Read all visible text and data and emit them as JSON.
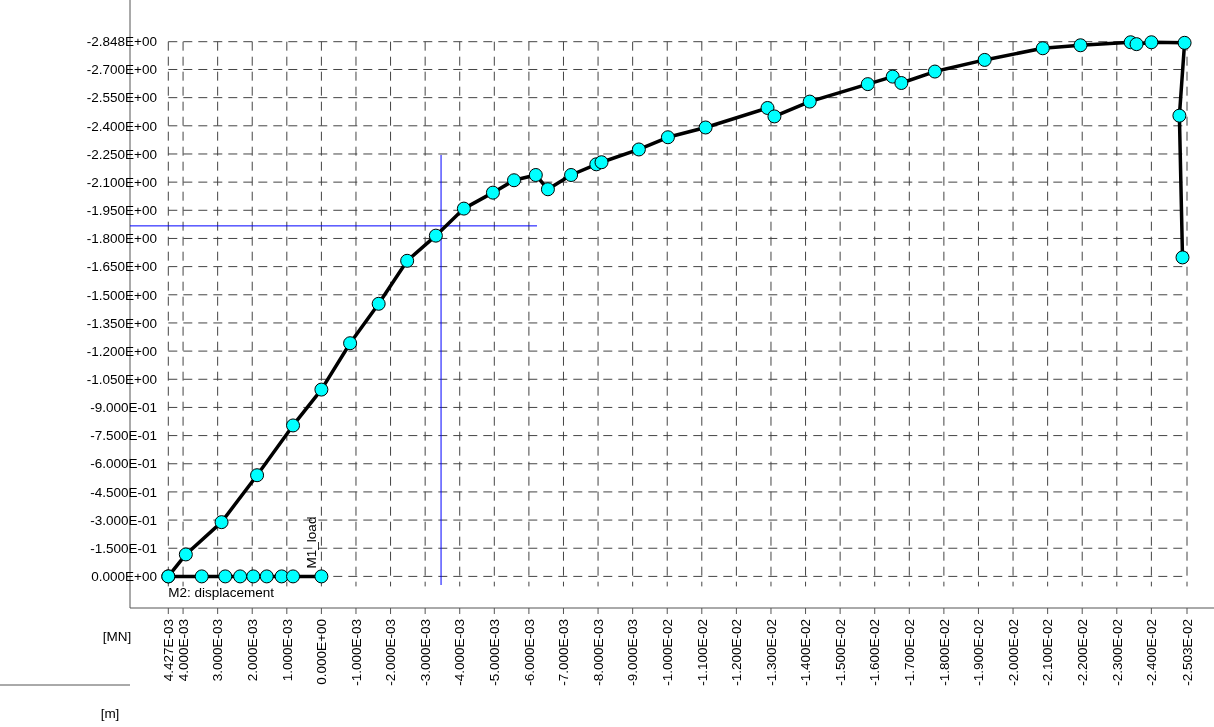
{
  "chart_data": {
    "type": "line",
    "xlabel": "[m]",
    "ylabel": "[MN]",
    "annotations": [
      {
        "text": "M1_load",
        "x": 0,
        "y": 0
      },
      {
        "text": "M2: displacement",
        "x": 0.004427,
        "y": 0
      }
    ],
    "series": [
      {
        "color": "#00ffff",
        "x": [
          0.004427,
          0.00392,
          0.002887,
          0.00186,
          0.00082,
          0,
          -0.00083,
          -0.001656,
          -0.00248,
          -0.00331,
          -0.00412,
          -0.00496,
          -0.00557,
          -0.0062,
          -0.00655,
          -0.00722,
          -0.00795,
          -0.0081,
          -0.00918,
          -0.01002,
          -0.01111,
          -0.0129,
          -0.0131,
          -0.01412,
          -0.0158,
          -0.01652,
          -0.01677,
          -0.01774,
          -0.01918,
          -0.02086,
          -0.02195,
          -0.0234,
          -0.02357,
          -0.024,
          -0.02496,
          -0.02481,
          -0.0249
        ],
        "values": [
          0,
          -0.117,
          -0.289,
          -0.539,
          -0.804,
          -0.995,
          -1.242,
          -1.452,
          -1.681,
          -1.815,
          -1.959,
          -2.044,
          -2.11,
          -2.138,
          -2.062,
          -2.138,
          -2.195,
          -2.206,
          -2.274,
          -2.339,
          -2.391,
          -2.495,
          -2.45,
          -2.529,
          -2.622,
          -2.662,
          -2.628,
          -2.689,
          -2.751,
          -2.813,
          -2.829,
          -2.845,
          -2.835,
          -2.845,
          -2.842,
          -2.454,
          -1.699
        ]
      },
      {
        "color": "#00ffff",
        "x": [
          0.004427,
          0.00346,
          0.00278,
          0.00235,
          0.00197,
          0.00158,
          0.00115,
          0.00082,
          0
        ],
        "values": [
          0,
          0,
          0,
          0,
          0,
          0,
          0,
          0,
          0
        ]
      }
    ],
    "marker": "circle",
    "line_style": "solid",
    "grid": true,
    "ref_lines": [
      {
        "axis": "x",
        "value": -0.00346,
        "color": "#0000ff"
      },
      {
        "axis": "y",
        "value": -1.867,
        "color": "#0000ff"
      }
    ],
    "xlim": [
      0.004427,
      -0.02503
    ],
    "ylim": [
      0,
      -2.848
    ],
    "xticks": [
      {
        "value": 0.004427,
        "label": "4.427E-03"
      },
      {
        "value": 0.004,
        "label": "4.000E-03"
      },
      {
        "value": 0.003,
        "label": "3.000E-03"
      },
      {
        "value": 0.002,
        "label": "2.000E-03"
      },
      {
        "value": 0.001,
        "label": "1.000E-03"
      },
      {
        "value": 0,
        "label": "0.000E+00"
      },
      {
        "value": -0.001,
        "label": "-1.000E-03"
      },
      {
        "value": -0.002,
        "label": "-2.000E-03"
      },
      {
        "value": -0.003,
        "label": "-3.000E-03"
      },
      {
        "value": -0.004,
        "label": "-4.000E-03"
      },
      {
        "value": -0.005,
        "label": "-5.000E-03"
      },
      {
        "value": -0.006,
        "label": "-6.000E-03"
      },
      {
        "value": -0.007,
        "label": "-7.000E-03"
      },
      {
        "value": -0.008,
        "label": "-8.000E-03"
      },
      {
        "value": -0.009,
        "label": "-9.000E-03"
      },
      {
        "value": -0.01,
        "label": "-1.000E-02"
      },
      {
        "value": -0.011,
        "label": "-1.100E-02"
      },
      {
        "value": -0.012,
        "label": "-1.200E-02"
      },
      {
        "value": -0.013,
        "label": "-1.300E-02"
      },
      {
        "value": -0.014,
        "label": "-1.400E-02"
      },
      {
        "value": -0.015,
        "label": "-1.500E-02"
      },
      {
        "value": -0.016,
        "label": "-1.600E-02"
      },
      {
        "value": -0.017,
        "label": "-1.700E-02"
      },
      {
        "value": -0.018,
        "label": "-1.800E-02"
      },
      {
        "value": -0.019,
        "label": "-1.900E-02"
      },
      {
        "value": -0.02,
        "label": "-2.000E-02"
      },
      {
        "value": -0.021,
        "label": "-2.100E-02"
      },
      {
        "value": -0.022,
        "label": "-2.200E-02"
      },
      {
        "value": -0.023,
        "label": "-2.300E-02"
      },
      {
        "value": -0.024,
        "label": "-2.400E-02"
      },
      {
        "value": -0.02503,
        "label": "-2.503E-02"
      }
    ],
    "yticks": [
      {
        "value": 0,
        "label": "0.000E+00"
      },
      {
        "value": -0.15,
        "label": "-1.500E-01"
      },
      {
        "value": -0.3,
        "label": "-3.000E-01"
      },
      {
        "value": -0.45,
        "label": "-4.500E-01"
      },
      {
        "value": -0.6,
        "label": "-6.000E-01"
      },
      {
        "value": -0.75,
        "label": "-7.500E-01"
      },
      {
        "value": -0.9,
        "label": "-9.000E-01"
      },
      {
        "value": -1.05,
        "label": "-1.050E+00"
      },
      {
        "value": -1.2,
        "label": "-1.200E+00"
      },
      {
        "value": -1.35,
        "label": "-1.350E+00"
      },
      {
        "value": -1.5,
        "label": "-1.500E+00"
      },
      {
        "value": -1.65,
        "label": "-1.650E+00"
      },
      {
        "value": -1.8,
        "label": "-1.800E+00"
      },
      {
        "value": -1.95,
        "label": "-1.950E+00"
      },
      {
        "value": -2.1,
        "label": "-2.100E+00"
      },
      {
        "value": -2.25,
        "label": "-2.250E+00"
      },
      {
        "value": -2.4,
        "label": "-2.400E+00"
      },
      {
        "value": -2.55,
        "label": "-2.550E+00"
      },
      {
        "value": -2.7,
        "label": "-2.700E+00"
      },
      {
        "value": -2.848,
        "label": "-2.848E+00"
      }
    ]
  }
}
